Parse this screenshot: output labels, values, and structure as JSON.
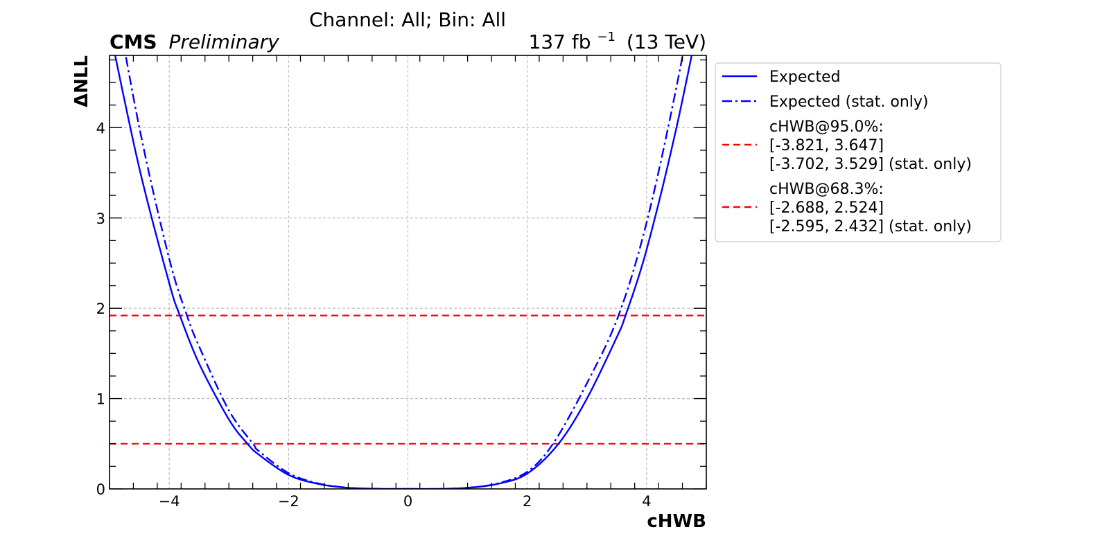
{
  "chart_data": {
    "type": "line",
    "title": "Channel: All; Bin: All",
    "experiment": "CMS",
    "status": "Preliminary",
    "lumi_value": "137 fb",
    "lumi_exp": "−1",
    "energy": "(13 TeV)",
    "xlabel": "cHWB",
    "ylabel": "ΔNLL",
    "xlim": [
      -5,
      5
    ],
    "ylim": [
      0,
      4.8
    ],
    "xticks": [
      -4,
      -2,
      0,
      2,
      4
    ],
    "xtick_labels": [
      "−4",
      "−2",
      "0",
      "2",
      "4"
    ],
    "yticks": [
      0,
      1,
      2,
      3,
      4
    ],
    "ytick_labels": [
      "0",
      "1",
      "2",
      "3",
      "4"
    ],
    "grid": true,
    "legend_position": "outside-right",
    "series": [
      {
        "name": "Expected",
        "color": "#0000ff",
        "style": "solid",
        "x": [
          -5.0,
          -4.5,
          -4.0,
          -3.821,
          -3.5,
          -3.0,
          -2.688,
          -2.5,
          -2.0,
          -1.5,
          -1.0,
          -0.5,
          0.0,
          0.5,
          1.0,
          1.5,
          2.0,
          2.524,
          3.0,
          3.5,
          3.647,
          4.0,
          4.5,
          5.0
        ],
        "y": [
          5.1,
          3.55,
          2.28,
          1.92,
          1.39,
          0.77,
          0.5,
          0.38,
          0.155,
          0.055,
          0.012,
          0.001,
          0.0,
          0.0,
          0.012,
          0.055,
          0.17,
          0.5,
          1.0,
          1.68,
          1.92,
          2.65,
          4.0,
          5.6
        ]
      },
      {
        "name": "Expected (stat. only)",
        "color": "#0000ff",
        "style": "dashdot",
        "x": [
          -5.0,
          -4.5,
          -4.0,
          -3.702,
          -3.5,
          -3.0,
          -2.595,
          -2.5,
          -2.0,
          -1.5,
          -1.0,
          -0.5,
          0.0,
          0.5,
          1.0,
          1.5,
          2.0,
          2.432,
          3.0,
          3.529,
          4.0,
          4.5,
          5.0
        ],
        "y": [
          5.8,
          4.0,
          2.55,
          1.92,
          1.58,
          0.87,
          0.5,
          0.42,
          0.175,
          0.06,
          0.013,
          0.001,
          0.0,
          0.0,
          0.013,
          0.06,
          0.19,
          0.5,
          1.17,
          1.92,
          2.95,
          4.45,
          6.2
        ]
      }
    ],
    "hlines": [
      {
        "y": 1.92,
        "color": "#ff0000",
        "style": "dashed"
      },
      {
        "y": 0.5,
        "color": "#ff0000",
        "style": "dashed"
      }
    ],
    "legend": [
      {
        "style": "solid",
        "color": "#0000ff",
        "lines": [
          "Expected"
        ]
      },
      {
        "style": "dashdot",
        "color": "#0000ff",
        "lines": [
          "Expected (stat. only)"
        ]
      },
      {
        "style": "dashed",
        "color": "#ff0000",
        "lines": [
          "cHWB@95.0%:",
          "[-3.821, 3.647]",
          "[-3.702, 3.529] (stat. only)"
        ]
      },
      {
        "style": "dashed",
        "color": "#ff0000",
        "lines": [
          "cHWB@68.3%:",
          "[-2.688, 2.524]",
          "[-2.595, 2.432] (stat. only)"
        ]
      }
    ]
  }
}
